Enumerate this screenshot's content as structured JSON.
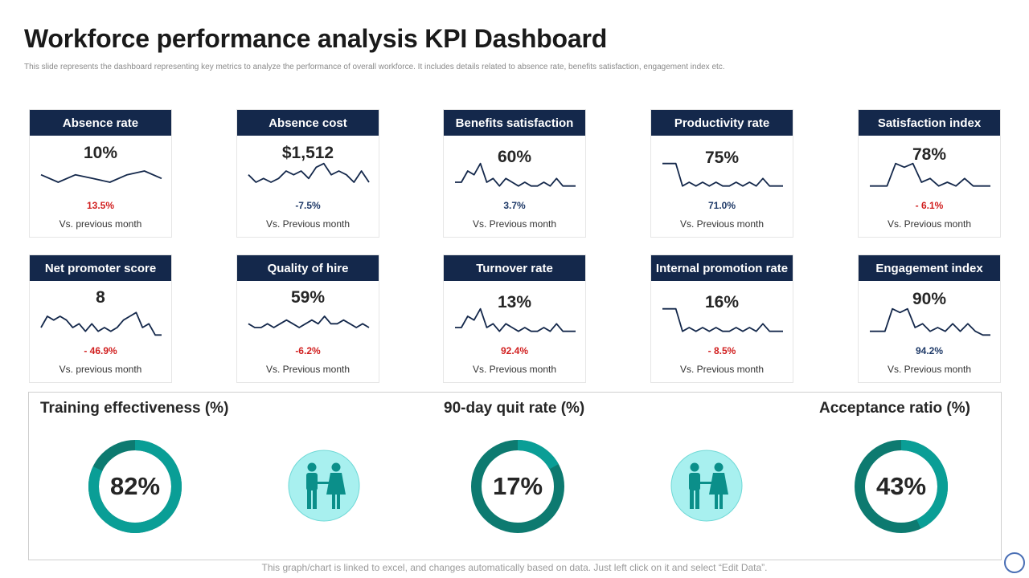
{
  "header": {
    "title": "Workforce performance analysis KPI Dashboard",
    "subtitle": "This slide represents the dashboard representing key metrics to analyze the performance of overall workforce. It includes details related to absence rate, benefits satisfaction, engagement index etc."
  },
  "kpis": [
    {
      "title": "Absence rate",
      "value": "10%",
      "change": "13.5%",
      "compare": "Vs. previous month",
      "spark": [
        5,
        3,
        5,
        4,
        3,
        5,
        6,
        4
      ]
    },
    {
      "title": "Absence cost",
      "value": "$1,512",
      "change": "-7.5%",
      "compare": "Vs. Previous month",
      "spark": [
        5,
        3,
        4,
        3,
        4,
        6,
        5,
        6,
        4,
        7,
        8,
        5,
        6,
        5,
        3,
        6,
        3
      ]
    },
    {
      "title": "Benefits satisfaction",
      "value": "60%",
      "change": "3.7%",
      "compare": "Vs. Previous month",
      "spark": [
        3,
        3,
        6,
        5,
        8,
        3,
        4,
        2,
        4,
        3,
        2,
        3,
        2,
        2,
        3,
        2,
        4,
        2,
        2,
        2
      ]
    },
    {
      "title": "Productivity rate",
      "value": "75%",
      "change": "71.0%",
      "compare": "Vs. Previous month",
      "spark": [
        8,
        8,
        8,
        2,
        3,
        2,
        3,
        2,
        3,
        2,
        2,
        3,
        2,
        3,
        2,
        4,
        2,
        2,
        2
      ]
    },
    {
      "title": "Satisfaction index",
      "value": "78%",
      "change": "- 6.1%",
      "compare": "Vs. Previous month",
      "spark": [
        2,
        2,
        2,
        8,
        7,
        8,
        3,
        4,
        2,
        3,
        2,
        4,
        2,
        2,
        2
      ]
    },
    {
      "title": "Net promoter score",
      "value": "8",
      "change": "- 46.9%",
      "compare": "Vs. previous month",
      "spark": [
        3,
        6,
        5,
        6,
        5,
        3,
        4,
        2,
        4,
        2,
        3,
        2,
        3,
        5,
        6,
        7,
        3,
        4,
        1,
        1
      ]
    },
    {
      "title": "Quality of hire",
      "value": "59%",
      "change": "-6.2%",
      "compare": "Vs. Previous month",
      "spark": [
        4,
        3,
        3,
        4,
        3,
        4,
        5,
        4,
        3,
        4,
        5,
        4,
        6,
        4,
        4,
        5,
        4,
        3,
        4,
        3
      ]
    },
    {
      "title": "Turnover rate",
      "value": "13%",
      "change": "92.4%",
      "compare": "Vs. Previous month",
      "spark": [
        3,
        3,
        6,
        5,
        8,
        3,
        4,
        2,
        4,
        3,
        2,
        3,
        2,
        2,
        3,
        2,
        4,
        2,
        2,
        2
      ]
    },
    {
      "title": "Internal promotion rate",
      "value": "16%",
      "change": "- 8.5%",
      "compare": "Vs. Previous month",
      "spark": [
        8,
        8,
        8,
        2,
        3,
        2,
        3,
        2,
        3,
        2,
        2,
        3,
        2,
        3,
        2,
        4,
        2,
        2,
        2
      ]
    },
    {
      "title": "Engagement index",
      "value": "90%",
      "change": "94.2%",
      "compare": "Vs. Previous month",
      "spark": [
        2,
        2,
        2,
        8,
        7,
        8,
        3,
        4,
        2,
        3,
        2,
        4,
        2,
        4,
        2,
        1,
        1
      ]
    }
  ],
  "gauges": [
    {
      "label": "Training effectiveness (%)",
      "value": "82%",
      "fraction": 0.82
    },
    {
      "label": "90-day quit rate (%)",
      "value": "17%",
      "fraction": 0.17
    },
    {
      "label": "Acceptance ratio (%)",
      "value": "43%",
      "fraction": 0.43
    }
  ],
  "footer": "This graph/chart is linked to excel, and changes automatically based on data. Just left click on it and select “Edit Data”.",
  "colors": {
    "header_bg": "#14284b",
    "spark_line": "#14284b",
    "negative": "#d11f1f",
    "positive": "#1f3a68",
    "gauge_fill": "#0a9e96",
    "gauge_track": "#0d7a70",
    "people_circle": "#a8f0ef",
    "people_figure": "#0b8f8a"
  },
  "icons": {
    "people": "couple-people-icon"
  }
}
